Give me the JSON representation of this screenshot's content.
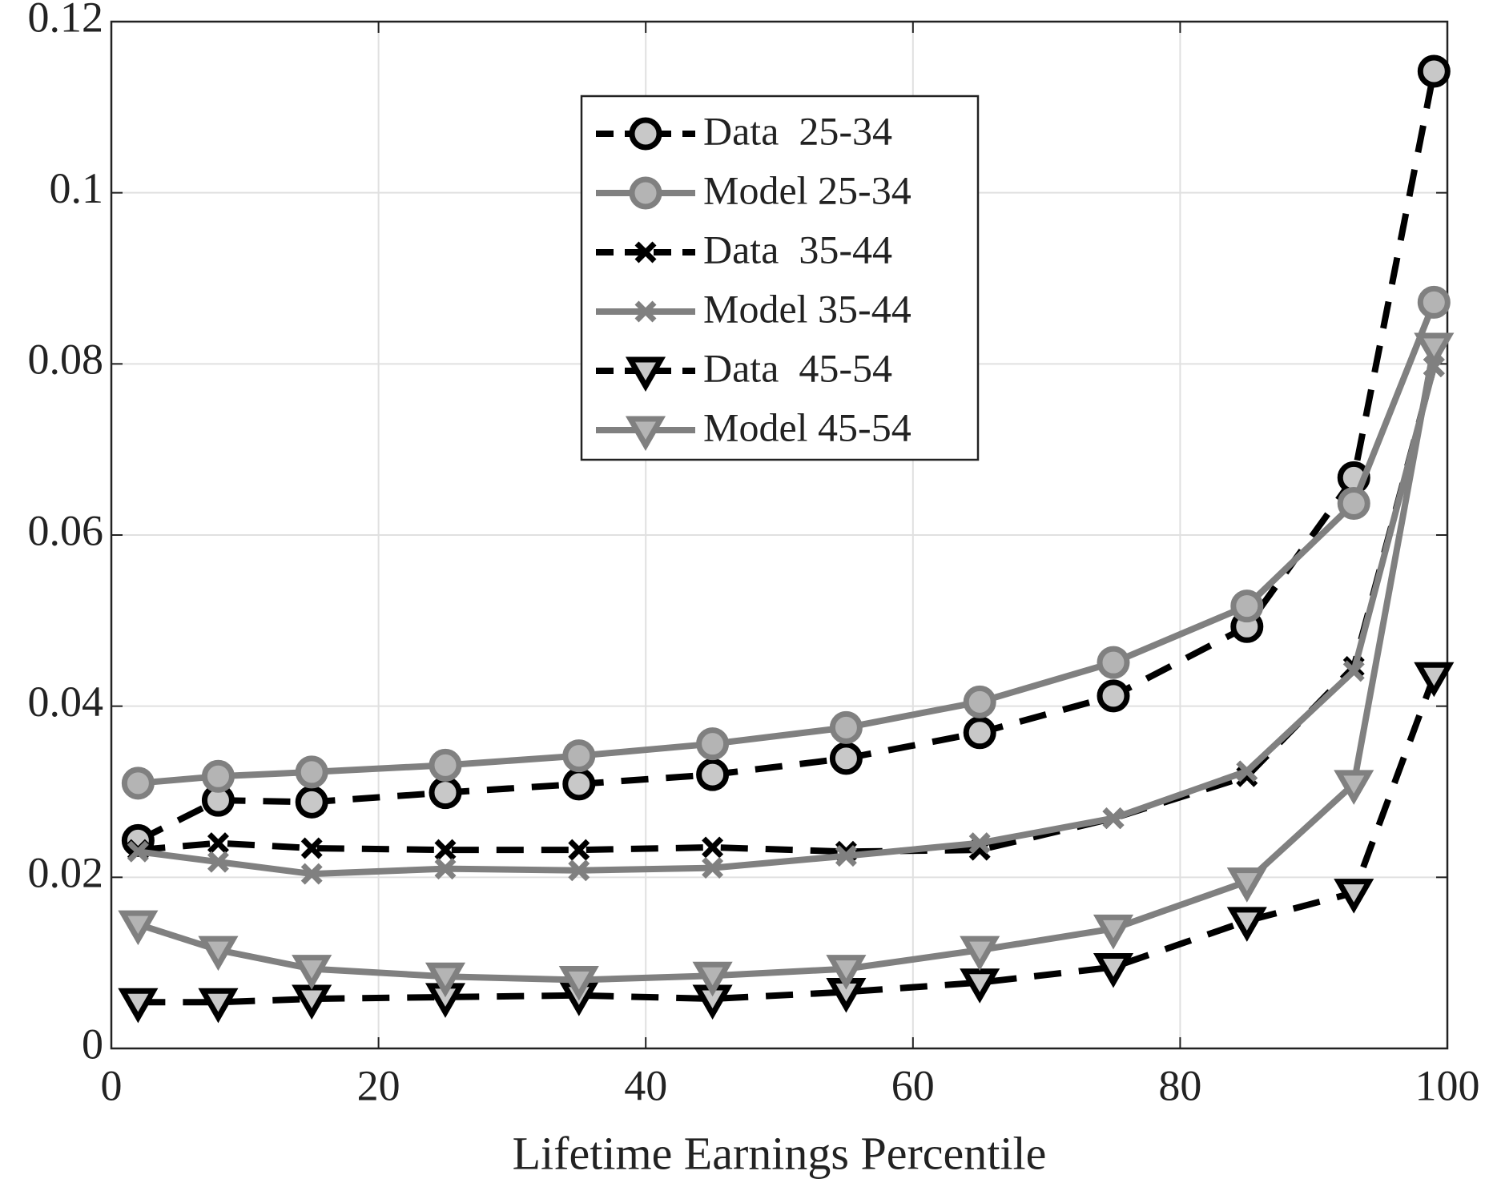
{
  "chart_data": {
    "type": "line",
    "xlabel": "Lifetime Earnings Percentile",
    "x": [
      2,
      8,
      15,
      25,
      35,
      45,
      55,
      65,
      75,
      85,
      93,
      99
    ],
    "xlim": [
      0,
      100
    ],
    "xticks": [
      0,
      20,
      40,
      60,
      80,
      100
    ],
    "ylim": [
      0,
      0.12
    ],
    "yticks": [
      0,
      0.02,
      0.04,
      0.06,
      0.08,
      0.1,
      0.12
    ],
    "grid": true,
    "legend": "top-center",
    "series": [
      {
        "name": "Data  25-34",
        "color": "#000000",
        "fill": "#c8c8c8",
        "marker": "circle",
        "dashed": true,
        "values": [
          0.0243,
          0.029,
          0.0288,
          0.0299,
          0.0309,
          0.032,
          0.0339,
          0.0369,
          0.0412,
          0.0493,
          0.0667,
          0.1142
        ]
      },
      {
        "name": "Model 25-34",
        "color": "#808080",
        "fill": "#b4b4b4",
        "marker": "circle",
        "dashed": false,
        "values": [
          0.031,
          0.0318,
          0.0323,
          0.0331,
          0.0342,
          0.0356,
          0.0375,
          0.0405,
          0.0451,
          0.0517,
          0.0637,
          0.0872
        ]
      },
      {
        "name": "Data  35-44",
        "color": "#000000",
        "fill": "#c8c8c8",
        "marker": "x",
        "dashed": true,
        "values": [
          0.0232,
          0.024,
          0.0234,
          0.0232,
          0.0232,
          0.0235,
          0.023,
          0.0232,
          0.0269,
          0.0318,
          0.0446,
          0.0797
        ]
      },
      {
        "name": "Model 35-44",
        "color": "#808080",
        "fill": "#b4b4b4",
        "marker": "x",
        "dashed": false,
        "values": [
          0.023,
          0.0218,
          0.0204,
          0.021,
          0.0208,
          0.0211,
          0.0225,
          0.024,
          0.0269,
          0.0324,
          0.0441,
          0.0797
        ]
      },
      {
        "name": "Data  45-54",
        "color": "#000000",
        "fill": "#c8c8c8",
        "marker": "triangle-down",
        "dashed": true,
        "values": [
          0.0054,
          0.0054,
          0.0058,
          0.006,
          0.0062,
          0.0058,
          0.0066,
          0.0077,
          0.0095,
          0.0149,
          0.0182,
          0.0435
        ]
      },
      {
        "name": "Model 45-54",
        "color": "#808080",
        "fill": "#b4b4b4",
        "marker": "triangle-down",
        "dashed": false,
        "values": [
          0.0145,
          0.0115,
          0.0093,
          0.0084,
          0.008,
          0.0085,
          0.0093,
          0.0115,
          0.014,
          0.0195,
          0.0309,
          0.082
        ]
      }
    ]
  }
}
